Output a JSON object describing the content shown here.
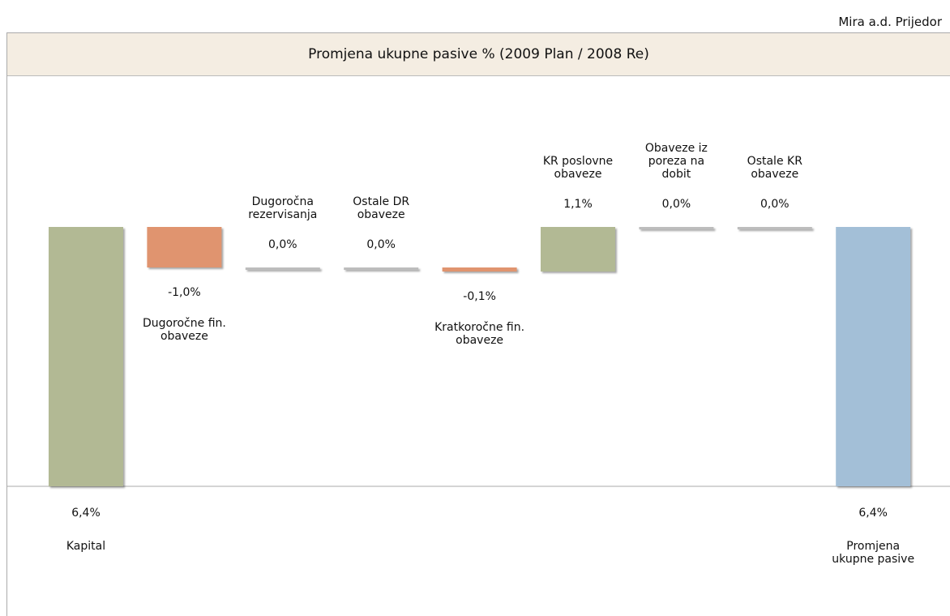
{
  "chart_data": {
    "type": "waterfall",
    "company": "Mira a.d. Prijedor",
    "title": "Promjena ukupne pasive % (2009 Plan / 2008 Re)",
    "categories": [
      "Kapital",
      "Dugoročne fin. obaveze",
      "Dugoročna rezervisanja",
      "Ostale DR obaveze",
      "Kratkoročne fin. obaveze",
      "KR poslovne obaveze",
      "Obaveze iz poreza na dobit",
      "Ostale KR obaveze",
      "Promjena ukupne pasive"
    ],
    "values": [
      6.4,
      -1.0,
      0.0,
      0.0,
      -0.1,
      1.1,
      0.0,
      0.0,
      6.4
    ],
    "value_labels": [
      "6,4%",
      "-1,0%",
      "0,0%",
      "0,0%",
      "-0,1%",
      "1,1%",
      "0,0%",
      "0,0%",
      "6,4%"
    ],
    "is_total": [
      false,
      false,
      false,
      false,
      false,
      false,
      false,
      false,
      true
    ],
    "colors": {
      "increase": "#b2b994",
      "decrease": "#e0946f",
      "total": "#a3bfd7",
      "zero": "#bdbdbd"
    }
  }
}
